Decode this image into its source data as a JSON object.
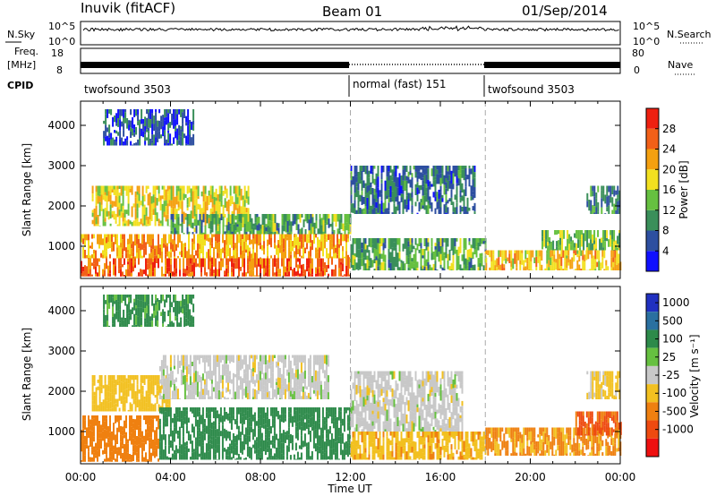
{
  "header": {
    "station": "Inuvik (fitACF)",
    "beam": "Beam 01",
    "date": "01/Sep/2014"
  },
  "strip_labels": {
    "nsky": "N.Sky",
    "nsky_top": "10^5",
    "nsky_bottom": "10^0",
    "nsearch": "N.Search",
    "nsearch_top": "10^5",
    "nsearch_bottom": "10^0",
    "freq_top_line": "Freq.",
    "freq_bottom_line": "[MHz]",
    "freq_top": "18",
    "freq_bottom": "8",
    "nave": "Nave",
    "nave_top": "80",
    "nave_bottom": "0",
    "cpid": "CPID"
  },
  "cpid_segments": [
    {
      "label": "twofsound 3503",
      "start_hour": 0,
      "end_hour": 12
    },
    {
      "label": "normal (fast) 151",
      "start_hour": 12,
      "end_hour": 18
    },
    {
      "label": "twofsound 3503",
      "start_hour": 18,
      "end_hour": 24
    }
  ],
  "x_axis": {
    "label": "Time UT",
    "range_hours": [
      0,
      24
    ],
    "ticks": [
      "00:00",
      "04:00",
      "08:00",
      "12:00",
      "16:00",
      "20:00",
      "00:00"
    ]
  },
  "colors": {
    "power": [
      "#1010ff",
      "#2d4fa0",
      "#3a8f5a",
      "#66c040",
      "#f2e020",
      "#f4a010",
      "#f26018",
      "#ee2010"
    ],
    "velocity": [
      "#2030c0",
      "#2a70a0",
      "#2d8a4a",
      "#66c040",
      "#c8c8c8",
      "#f2c020",
      "#ef8010",
      "#ee4a10",
      "#ee1010"
    ],
    "dashline": "#aaaaaa"
  },
  "chart_data": [
    {
      "type": "heatmap",
      "title": "Power",
      "xlabel": "Time UT",
      "ylabel": "Slant Range [km]",
      "xlim": [
        0,
        24
      ],
      "ylim": [
        200,
        4600
      ],
      "yticks": [
        "1000",
        "2000",
        "3000",
        "4000"
      ],
      "colorbar": {
        "label": "Power [dB]",
        "range": [
          0,
          32
        ],
        "ticks": [
          "4",
          "8",
          "12",
          "16",
          "20",
          "24",
          "28"
        ]
      },
      "bands": [
        {
          "range_start_km": 250,
          "range_end_km": 700,
          "start_hour": 0.0,
          "end_hour": 12.0,
          "level_db": 26
        },
        {
          "range_start_km": 700,
          "range_end_km": 1300,
          "start_hour": 0.0,
          "end_hour": 12.0,
          "level_db": 22
        },
        {
          "range_start_km": 1500,
          "range_end_km": 2500,
          "start_hour": 0.5,
          "end_hour": 7.5,
          "level_db": 18
        },
        {
          "range_start_km": 1300,
          "range_end_km": 1800,
          "start_hour": 4.0,
          "end_hour": 12.0,
          "level_db": 12
        },
        {
          "range_start_km": 1800,
          "range_end_km": 3000,
          "start_hour": 12.0,
          "end_hour": 17.5,
          "level_db": 8
        },
        {
          "range_start_km": 400,
          "range_end_km": 1200,
          "start_hour": 12.0,
          "end_hour": 18.0,
          "level_db": 12
        },
        {
          "range_start_km": 400,
          "range_end_km": 900,
          "start_hour": 18.0,
          "end_hour": 24.0,
          "level_db": 20
        },
        {
          "range_start_km": 900,
          "range_end_km": 1400,
          "start_hour": 20.5,
          "end_hour": 24.0,
          "level_db": 14
        },
        {
          "range_start_km": 1800,
          "range_end_km": 2500,
          "start_hour": 22.5,
          "end_hour": 24.0,
          "level_db": 10
        },
        {
          "range_start_km": 3500,
          "range_end_km": 4400,
          "start_hour": 1.0,
          "end_hour": 5.0,
          "level_db": 6
        }
      ]
    },
    {
      "type": "heatmap",
      "title": "Velocity",
      "xlabel": "Time UT",
      "ylabel": "Slant Range [km]",
      "xlim": [
        0,
        24
      ],
      "ylim": [
        200,
        4600
      ],
      "yticks": [
        "1000",
        "2000",
        "3000",
        "4000"
      ],
      "colorbar": {
        "label": "Velocity [m s⁻¹]",
        "ticks": [
          "1000",
          "500",
          "100",
          "25",
          "-25",
          "-100",
          "-500",
          "-1000"
        ]
      },
      "bands": [
        {
          "range_start_km": 250,
          "range_end_km": 1400,
          "start_hour": 0.0,
          "end_hour": 3.5,
          "velocity_ms": -300
        },
        {
          "range_start_km": 1500,
          "range_end_km": 2400,
          "start_hour": 0.5,
          "end_hour": 4.0,
          "velocity_ms": -60
        },
        {
          "range_start_km": 1800,
          "range_end_km": 2900,
          "start_hour": 3.5,
          "end_hour": 11.0,
          "velocity_ms": 0
        },
        {
          "range_start_km": 300,
          "range_end_km": 1600,
          "start_hour": 3.5,
          "end_hour": 12.0,
          "velocity_ms": 200
        },
        {
          "range_start_km": 300,
          "range_end_km": 1000,
          "start_hour": 12.0,
          "end_hour": 18.0,
          "velocity_ms": -80
        },
        {
          "range_start_km": 1000,
          "range_end_km": 2500,
          "start_hour": 12.0,
          "end_hour": 17.0,
          "velocity_ms": 0
        },
        {
          "range_start_km": 400,
          "range_end_km": 1100,
          "start_hour": 18.0,
          "end_hour": 24.0,
          "velocity_ms": -120
        },
        {
          "range_start_km": 900,
          "range_end_km": 1500,
          "start_hour": 22.0,
          "end_hour": 24.0,
          "velocity_ms": -600
        },
        {
          "range_start_km": 1800,
          "range_end_km": 2500,
          "start_hour": 22.5,
          "end_hour": 24.0,
          "velocity_ms": -40
        },
        {
          "range_start_km": 3600,
          "range_end_km": 4400,
          "start_hour": 1.0,
          "end_hour": 5.0,
          "velocity_ms": 150
        }
      ]
    }
  ]
}
